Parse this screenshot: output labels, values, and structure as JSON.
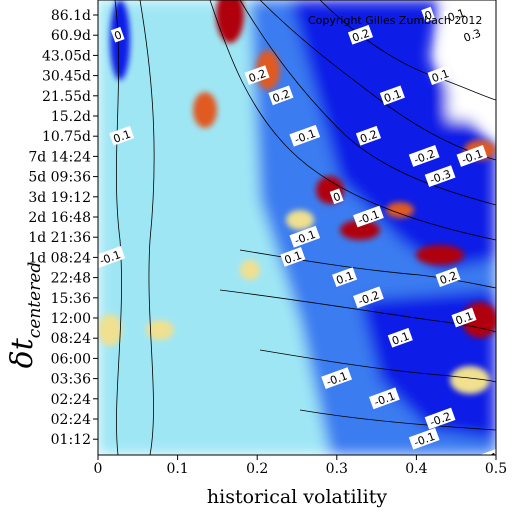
{
  "chart_data": {
    "type": "heatmap",
    "title": "",
    "copyright": "Copyright Gilles Zumbach 2012",
    "xlabel": "historical volatility",
    "ylabel_main": "δt",
    "ylabel_sub": "centered",
    "xlim": [
      0,
      0.5
    ],
    "x_ticks": [
      "0",
      "0.1",
      "0.2",
      "0.3",
      "0.4",
      "0.5"
    ],
    "x_tick_values": [
      0,
      0.1,
      0.2,
      0.3,
      0.4,
      0.5
    ],
    "y_ticks": [
      "86.1d",
      "60.9d",
      "43.05d",
      "30.45d",
      "21.55d",
      "15.2d",
      "10.75d",
      "7d 14:24",
      "5d 09:36",
      "3d 19:12",
      "2d 16:48",
      "1d 21:36",
      "1d 08:24",
      "22:48",
      "15:36",
      "12:00",
      "08:24",
      "06:00",
      "03:36",
      "02:24",
      "02:24",
      "01:12"
    ],
    "colormap": {
      "negative_strong": "#0a1fe6",
      "negative_mid": "#3a7cf0",
      "near_zero": "#9fe6f5",
      "positive_low": "#f0e090",
      "positive_mid": "#e05a20",
      "positive_strong": "#b00010",
      "missing": "#ffffff"
    },
    "contour_labels": [
      {
        "text": "0",
        "x": 0.415,
        "tick": 0
      },
      {
        "text": "0.1",
        "x": 0.45,
        "tick": 0
      },
      {
        "text": "0.3",
        "x": 0.47,
        "tick": 1
      },
      {
        "text": "0.2",
        "x": 0.33,
        "tick": 1
      },
      {
        "text": "0.2",
        "x": 0.2,
        "tick": 3
      },
      {
        "text": "0.1",
        "x": 0.43,
        "tick": 3
      },
      {
        "text": "0.1",
        "x": 0.37,
        "tick": 4
      },
      {
        "text": "0.2",
        "x": 0.23,
        "tick": 4
      },
      {
        "text": "0.2",
        "x": 0.34,
        "tick": 6
      },
      {
        "text": "-0.1",
        "x": 0.26,
        "tick": 6
      },
      {
        "text": "-0.2",
        "x": 0.41,
        "tick": 7
      },
      {
        "text": "-0.1",
        "x": 0.47,
        "tick": 7
      },
      {
        "text": "-0.3",
        "x": 0.43,
        "tick": 8
      },
      {
        "text": "0",
        "x": 0.3,
        "tick": 9
      },
      {
        "text": "-0.1",
        "x": 0.34,
        "tick": 10
      },
      {
        "text": "-0.1",
        "x": 0.26,
        "tick": 11
      },
      {
        "text": "0.1",
        "x": 0.245,
        "tick": 12
      },
      {
        "text": "0.1",
        "x": 0.31,
        "tick": 13
      },
      {
        "text": "0.2",
        "x": 0.44,
        "tick": 13
      },
      {
        "text": "-0.2",
        "x": 0.34,
        "tick": 14
      },
      {
        "text": "0.1",
        "x": 0.46,
        "tick": 15
      },
      {
        "text": "0.1",
        "x": 0.38,
        "tick": 16
      },
      {
        "text": "-0.1",
        "x": 0.3,
        "tick": 18
      },
      {
        "text": "-0.1",
        "x": 0.36,
        "tick": 19
      },
      {
        "text": "-0.1",
        "x": 0.41,
        "tick": 21
      },
      {
        "text": "-0.1",
        "x": 0.49,
        "tick": 22
      },
      {
        "text": "-0.2",
        "x": 0.43,
        "tick": 20
      },
      {
        "text": "0",
        "x": 0.025,
        "tick": 1
      },
      {
        "text": "0.1",
        "x": 0.03,
        "tick": 6
      },
      {
        "text": "-0.1",
        "x": 0.015,
        "tick": 12
      }
    ]
  }
}
